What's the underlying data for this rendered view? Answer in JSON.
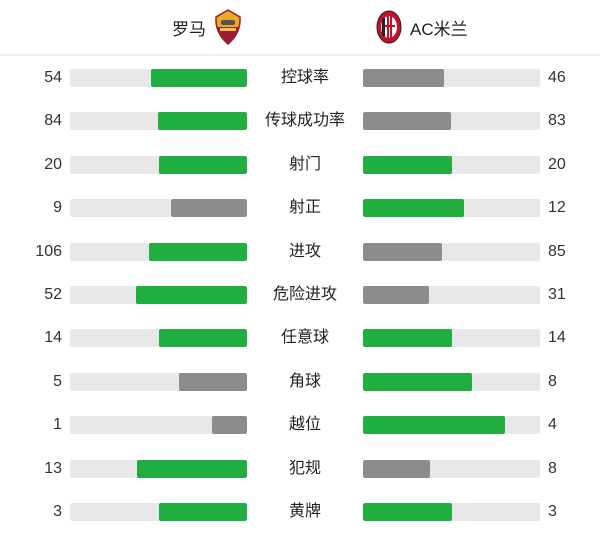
{
  "home_team": {
    "name": "罗马",
    "logo": "roma-crest"
  },
  "away_team": {
    "name": "AC米兰",
    "logo": "milan-crest"
  },
  "colors": {
    "leading": "#1fae3f",
    "trailing": "#8c8c8c",
    "track": "#e8e8e8"
  },
  "stats": [
    {
      "label": "控球率",
      "home": 54,
      "away": 46
    },
    {
      "label": "传球成功率",
      "home": 84,
      "away": 83
    },
    {
      "label": "射门",
      "home": 20,
      "away": 20
    },
    {
      "label": "射正",
      "home": 9,
      "away": 12
    },
    {
      "label": "进攻",
      "home": 106,
      "away": 85
    },
    {
      "label": "危险进攻",
      "home": 52,
      "away": 31
    },
    {
      "label": "任意球",
      "home": 14,
      "away": 14
    },
    {
      "label": "角球",
      "home": 5,
      "away": 8
    },
    {
      "label": "越位",
      "home": 1,
      "away": 4
    },
    {
      "label": "犯规",
      "home": 13,
      "away": 8
    },
    {
      "label": "黄牌",
      "home": 3,
      "away": 3
    }
  ]
}
